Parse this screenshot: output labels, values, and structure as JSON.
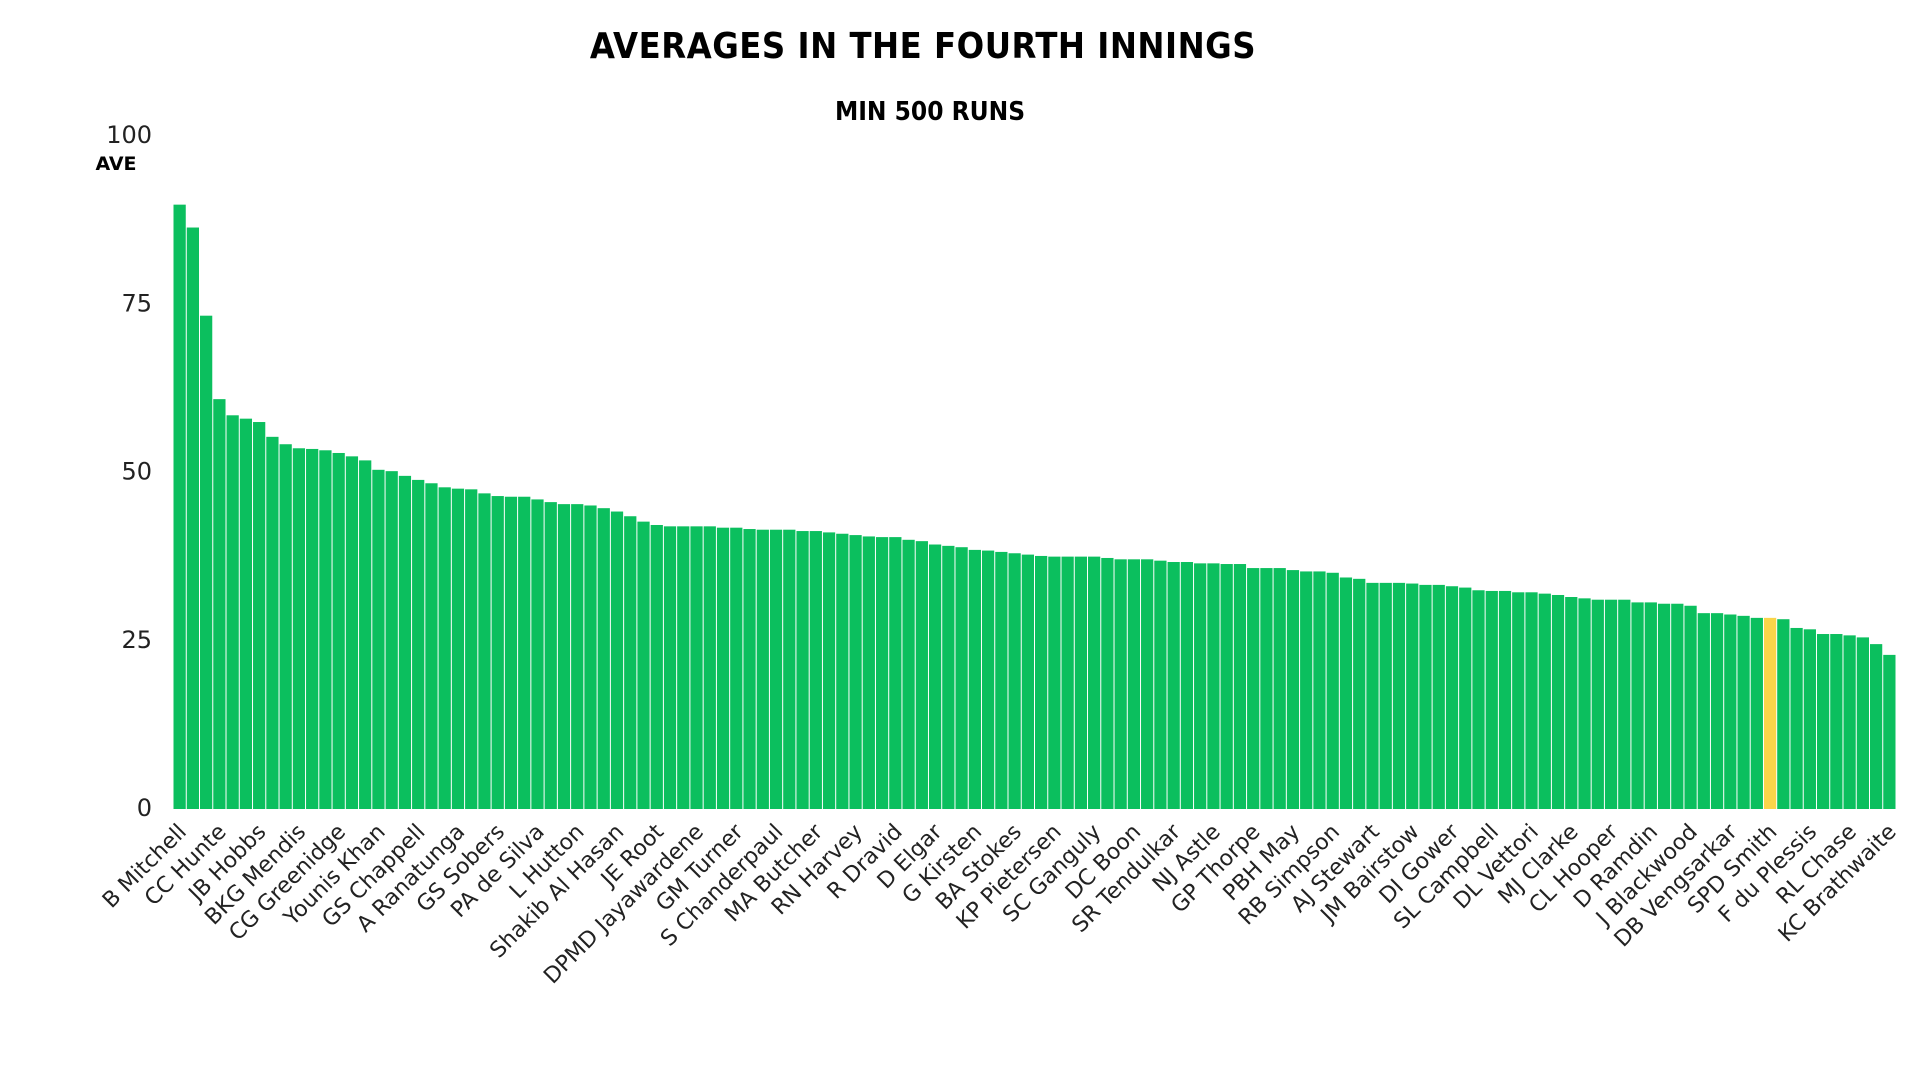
{
  "chart_data": {
    "type": "bar",
    "title": "AVERAGES IN THE FOURTH INNINGS",
    "subtitle": "MIN 500 RUNS",
    "y_label": "AVE",
    "categories": [
      "B Mitchell",
      null,
      null,
      "CC Hunte",
      null,
      null,
      "JB Hobbs",
      null,
      null,
      "BKG Mendis",
      null,
      null,
      "CG Greenidge",
      null,
      null,
      "Younis Khan",
      null,
      null,
      "GS Chappell",
      null,
      null,
      "A Ranatunga",
      null,
      null,
      "GS Sobers",
      null,
      null,
      "PA de Silva",
      null,
      null,
      "L Hutton",
      null,
      null,
      "Shakib Al Hasan",
      null,
      null,
      "JE Root",
      null,
      null,
      "DPMD Jayawardene",
      null,
      null,
      "GM Turner",
      null,
      null,
      "S Chanderpaul",
      null,
      null,
      "MA Butcher",
      null,
      null,
      "RN Harvey",
      null,
      null,
      "R Dravid",
      null,
      null,
      "D Elgar",
      null,
      null,
      "G Kirsten",
      null,
      null,
      "BA Stokes",
      null,
      null,
      "KP Pietersen",
      null,
      null,
      "SC Ganguly",
      null,
      null,
      "DC Boon",
      null,
      null,
      "SR Tendulkar",
      null,
      null,
      "NJ Astle",
      null,
      null,
      "GP Thorpe",
      null,
      null,
      "PBH May",
      null,
      null,
      "RB Simpson",
      null,
      null,
      "AJ Stewart",
      null,
      null,
      "JM Bairstow",
      null,
      null,
      "DI Gower",
      null,
      null,
      "SL Campbell",
      null,
      null,
      "DL Vettori",
      null,
      null,
      "MJ Clarke",
      null,
      null,
      "CL Hooper",
      null,
      null,
      "D Ramdin",
      null,
      null,
      "J Blackwood",
      null,
      null,
      "DB Vengsarkar",
      null,
      null,
      "SPD Smith",
      null,
      null,
      "F du Plessis",
      null,
      null,
      "RL Chase",
      null,
      null,
      "KC Brathwaite"
    ],
    "values": [
      89.8,
      86.4,
      73.3,
      60.9,
      58.5,
      58.0,
      57.5,
      55.3,
      54.2,
      53.6,
      53.5,
      53.3,
      52.9,
      52.4,
      51.8,
      50.4,
      50.2,
      49.5,
      48.9,
      48.4,
      47.8,
      47.6,
      47.5,
      46.9,
      46.5,
      46.4,
      46.4,
      46.0,
      45.6,
      45.3,
      45.3,
      45.1,
      44.7,
      44.2,
      43.5,
      42.7,
      42.2,
      42.0,
      42.0,
      42.0,
      42.0,
      41.8,
      41.8,
      41.6,
      41.5,
      41.5,
      41.5,
      41.3,
      41.3,
      41.1,
      40.9,
      40.7,
      40.5,
      40.4,
      40.4,
      40.0,
      39.8,
      39.3,
      39.1,
      38.9,
      38.5,
      38.4,
      38.2,
      38.0,
      37.8,
      37.6,
      37.5,
      37.5,
      37.5,
      37.5,
      37.3,
      37.1,
      37.1,
      37.1,
      36.9,
      36.7,
      36.7,
      36.5,
      36.5,
      36.4,
      36.4,
      35.8,
      35.8,
      35.8,
      35.5,
      35.3,
      35.3,
      35.1,
      34.4,
      34.2,
      33.6,
      33.6,
      33.6,
      33.5,
      33.3,
      33.3,
      33.1,
      32.9,
      32.5,
      32.4,
      32.4,
      32.2,
      32.2,
      32.0,
      31.8,
      31.5,
      31.3,
      31.1,
      31.1,
      31.1,
      30.7,
      30.7,
      30.5,
      30.5,
      30.2,
      29.1,
      29.1,
      28.9,
      28.7,
      28.4,
      28.4,
      28.2,
      26.9,
      26.7,
      26.0,
      26.0,
      25.8,
      25.5,
      24.5,
      22.9
    ],
    "colors": [
      "#0bbf5e",
      "#0bbf5e",
      "#0bbf5e",
      "#0bbf5e",
      "#0bbf5e",
      "#0bbf5e",
      "#0bbf5e",
      "#0bbf5e",
      "#0bbf5e",
      "#0bbf5e",
      "#0bbf5e",
      "#0bbf5e",
      "#0bbf5e",
      "#0bbf5e",
      "#0bbf5e",
      "#0bbf5e",
      "#0bbf5e",
      "#0bbf5e",
      "#0bbf5e",
      "#0bbf5e",
      "#0bbf5e",
      "#0bbf5e",
      "#0bbf5e",
      "#0bbf5e",
      "#0bbf5e",
      "#0bbf5e",
      "#0bbf5e",
      "#0bbf5e",
      "#0bbf5e",
      "#0bbf5e",
      "#0bbf5e",
      "#0bbf5e",
      "#0bbf5e",
      "#0bbf5e",
      "#0bbf5e",
      "#0bbf5e",
      "#0bbf5e",
      "#0bbf5e",
      "#0bbf5e",
      "#0bbf5e",
      "#0bbf5e",
      "#0bbf5e",
      "#0bbf5e",
      "#0bbf5e",
      "#0bbf5e",
      "#0bbf5e",
      "#0bbf5e",
      "#0bbf5e",
      "#0bbf5e",
      "#0bbf5e",
      "#0bbf5e",
      "#0bbf5e",
      "#0bbf5e",
      "#0bbf5e",
      "#0bbf5e",
      "#0bbf5e",
      "#0bbf5e",
      "#0bbf5e",
      "#0bbf5e",
      "#0bbf5e",
      "#0bbf5e",
      "#0bbf5e",
      "#0bbf5e",
      "#0bbf5e",
      "#0bbf5e",
      "#0bbf5e",
      "#0bbf5e",
      "#0bbf5e",
      "#0bbf5e",
      "#0bbf5e",
      "#0bbf5e",
      "#0bbf5e",
      "#0bbf5e",
      "#0bbf5e",
      "#0bbf5e",
      "#0bbf5e",
      "#0bbf5e",
      "#0bbf5e",
      "#0bbf5e",
      "#0bbf5e",
      "#0bbf5e",
      "#0bbf5e",
      "#0bbf5e",
      "#0bbf5e",
      "#0bbf5e",
      "#0bbf5e",
      "#0bbf5e",
      "#0bbf5e",
      "#0bbf5e",
      "#0bbf5e",
      "#0bbf5e",
      "#0bbf5e",
      "#0bbf5e",
      "#0bbf5e",
      "#0bbf5e",
      "#0bbf5e",
      "#0bbf5e",
      "#0bbf5e",
      "#0bbf5e",
      "#0bbf5e",
      "#0bbf5e",
      "#0bbf5e",
      "#0bbf5e",
      "#0bbf5e",
      "#0bbf5e",
      "#0bbf5e",
      "#0bbf5e",
      "#0bbf5e",
      "#0bbf5e",
      "#0bbf5e",
      "#0bbf5e",
      "#0bbf5e",
      "#0bbf5e",
      "#0bbf5e",
      "#0bbf5e",
      "#0bbf5e",
      "#0bbf5e",
      "#0bbf5e",
      "#0bbf5e",
      "#0bbf5e",
      "#fad54a",
      "#0bbf5e",
      "#0bbf5e",
      "#0bbf5e",
      "#0bbf5e",
      "#0bbf5e",
      "#0bbf5e",
      "#0bbf5e",
      "#0bbf5e",
      "#0bbf5e"
    ],
    "ylim": [
      0,
      100
    ],
    "yticks": [
      0,
      25,
      50,
      75,
      100
    ],
    "grid": false
  }
}
